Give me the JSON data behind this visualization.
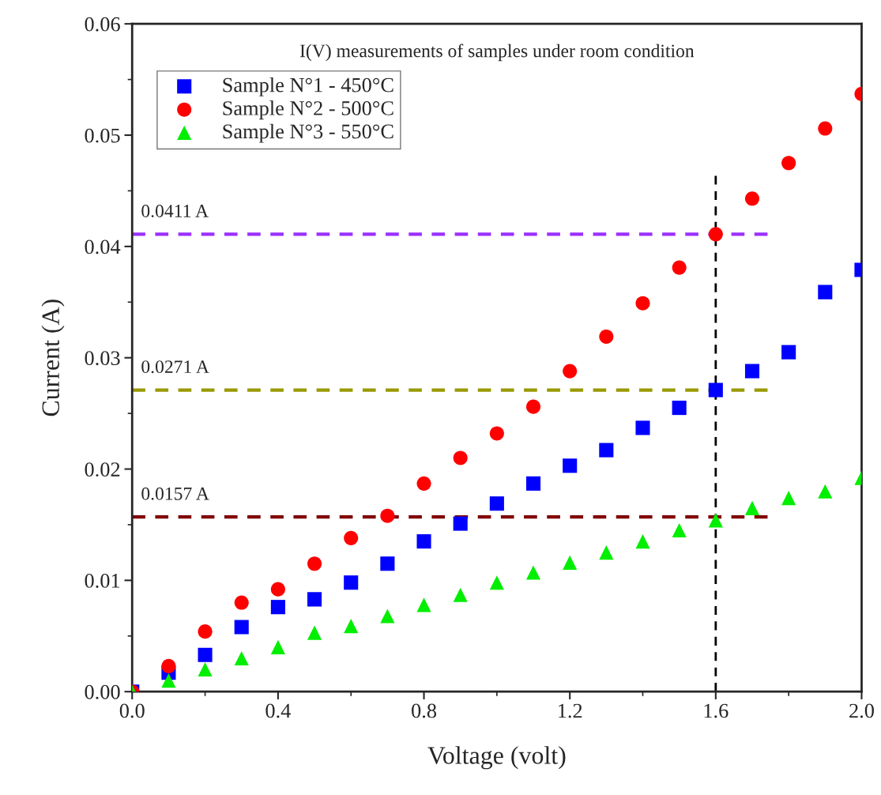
{
  "chart_data": {
    "type": "scatter",
    "title": "I(V) measurements of samples under room condition",
    "xlabel": "Voltage (volt)",
    "ylabel": "Current (A)",
    "x": [
      0.0,
      0.1,
      0.2,
      0.3,
      0.4,
      0.5,
      0.6,
      0.7,
      0.8,
      0.9,
      1.0,
      1.1,
      1.2,
      1.3,
      1.4,
      1.5,
      1.6,
      1.7,
      1.8,
      1.9,
      2.0
    ],
    "series": [
      {
        "name": "Sample N°1 - 450°C",
        "color": "#0000ff",
        "marker": "square",
        "values": [
          0.0,
          0.0017,
          0.0033,
          0.0058,
          0.0076,
          0.0083,
          0.0098,
          0.0115,
          0.0135,
          0.0151,
          0.0169,
          0.0187,
          0.0203,
          0.0217,
          0.0237,
          0.0255,
          0.0271,
          0.0288,
          0.0305,
          0.0359,
          0.0379
        ]
      },
      {
        "name": "Sample N°2 - 500°C",
        "color": "#ff0000",
        "marker": "circle",
        "values": [
          0.0,
          0.0023,
          0.0054,
          0.008,
          0.0092,
          0.0115,
          0.0138,
          0.0158,
          0.0187,
          0.021,
          0.0232,
          0.0256,
          0.0288,
          0.0319,
          0.0349,
          0.0381,
          0.0411,
          0.0443,
          0.0475,
          0.0506,
          0.0537
        ]
      },
      {
        "name": "Sample N°3 - 550°C",
        "color": "#00ee00",
        "marker": "triangle",
        "values": [
          0.0,
          0.001,
          0.002,
          0.003,
          0.004,
          0.0053,
          0.0059,
          0.0068,
          0.0078,
          0.0087,
          0.0098,
          0.0107,
          0.0116,
          0.0125,
          0.0135,
          0.0145,
          0.0154,
          0.0165,
          0.0174,
          0.018,
          0.0192
        ]
      }
    ],
    "ref_lines": [
      {
        "axis": "y",
        "value": 0.0411,
        "label": "0.0411 A",
        "color": "#9b30ff",
        "line_style": "dashed"
      },
      {
        "axis": "y",
        "value": 0.0271,
        "label": "0.0271 A",
        "color": "#999900",
        "line_style": "dashed"
      },
      {
        "axis": "y",
        "value": 0.0157,
        "label": "0.0157 A",
        "color": "#800000",
        "line_style": "dashed"
      },
      {
        "axis": "x",
        "value": 1.6,
        "label": null,
        "color": "#000000",
        "line_style": "dashed"
      }
    ],
    "xlim": [
      0.0,
      2.0
    ],
    "ylim": [
      0.0,
      0.06
    ],
    "xticks": [
      {
        "value": 0.0,
        "label": "0.0"
      },
      0.4,
      0.8,
      1.2,
      1.6,
      {
        "value": 2.0,
        "label": "2.0"
      }
    ],
    "yticks": [
      {
        "value": 0.0,
        "label": "0.00"
      },
      {
        "value": 0.01,
        "label": "0.01"
      },
      {
        "value": 0.02,
        "label": "0.02"
      },
      {
        "value": 0.03,
        "label": "0.03"
      },
      {
        "value": 0.04,
        "label": "0.04"
      },
      {
        "value": 0.05,
        "label": "0.05"
      },
      {
        "value": 0.06,
        "label": "0.06"
      }
    ],
    "grid": false,
    "legend": "top left"
  }
}
